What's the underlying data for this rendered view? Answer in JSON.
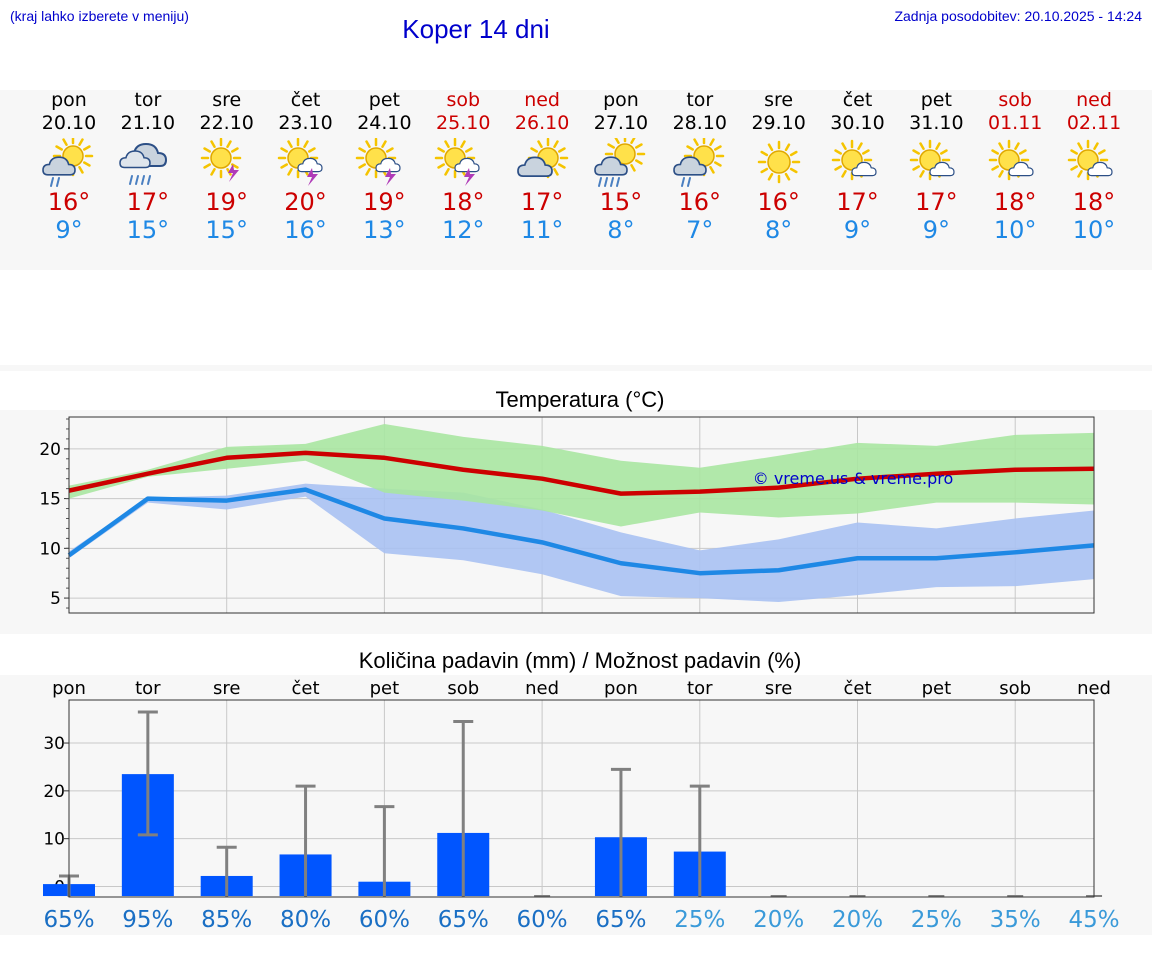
{
  "header": {
    "note": "(kraj lahko izberete v meniju)",
    "title": "Koper 14 dni",
    "updated": "Zadnja posodobitev: 20.10.2025 - 14:24"
  },
  "colors": {
    "max": "#cc0000",
    "min": "#1e88e5",
    "bar": "#0055ff",
    "band_max": "#a8e6a1",
    "band_min": "#a9c1f2",
    "watermark": "#0000cc"
  },
  "days": [
    {
      "name": "pon",
      "date": "20.10",
      "weekend": false,
      "max": "16°",
      "min": "9°",
      "icon": "sun-cloud-rain-icon"
    },
    {
      "name": "tor",
      "date": "21.10",
      "weekend": false,
      "max": "17°",
      "min": "15°",
      "icon": "cloud-heavy-rain-icon"
    },
    {
      "name": "sre",
      "date": "22.10",
      "weekend": false,
      "max": "19°",
      "min": "15°",
      "icon": "sun-thunder-icon"
    },
    {
      "name": "čet",
      "date": "23.10",
      "weekend": false,
      "max": "20°",
      "min": "16°",
      "icon": "sun-cloud-thunder-icon"
    },
    {
      "name": "pet",
      "date": "24.10",
      "weekend": false,
      "max": "19°",
      "min": "13°",
      "icon": "sun-cloud-thunder-icon"
    },
    {
      "name": "sob",
      "date": "25.10",
      "weekend": true,
      "max": "18°",
      "min": "12°",
      "icon": "sun-cloud-thunder-icon"
    },
    {
      "name": "ned",
      "date": "26.10",
      "weekend": true,
      "max": "17°",
      "min": "11°",
      "icon": "sun-cloud-icon"
    },
    {
      "name": "pon",
      "date": "27.10",
      "weekend": false,
      "max": "15°",
      "min": "8°",
      "icon": "sun-cloud-heavy-rain-icon"
    },
    {
      "name": "tor",
      "date": "28.10",
      "weekend": false,
      "max": "16°",
      "min": "7°",
      "icon": "sun-cloud-rain-icon"
    },
    {
      "name": "sre",
      "date": "29.10",
      "weekend": false,
      "max": "16°",
      "min": "8°",
      "icon": "sun-icon"
    },
    {
      "name": "čet",
      "date": "30.10",
      "weekend": false,
      "max": "17°",
      "min": "9°",
      "icon": "sun-small-cloud-icon"
    },
    {
      "name": "pet",
      "date": "31.10",
      "weekend": false,
      "max": "17°",
      "min": "9°",
      "icon": "sun-small-cloud-icon"
    },
    {
      "name": "sob",
      "date": "01.11",
      "weekend": true,
      "max": "18°",
      "min": "10°",
      "icon": "sun-small-cloud-icon"
    },
    {
      "name": "ned",
      "date": "02.11",
      "weekend": true,
      "max": "18°",
      "min": "10°",
      "icon": "sun-small-cloud-icon"
    }
  ],
  "chart_data": [
    {
      "type": "line",
      "title": "Temperatura (°C)",
      "watermark": "© vreme.us & vreme.pro",
      "ylim": [
        3.5,
        23.2
      ],
      "yticks": [
        5,
        10,
        15,
        20
      ],
      "grid": true,
      "x": [
        0,
        1,
        2,
        3,
        4,
        5,
        6,
        7,
        8,
        9,
        10,
        11,
        12,
        13
      ],
      "series": [
        {
          "values": [
            15.8,
            17.5,
            19.1,
            19.6,
            19.1,
            17.9,
            17.0,
            15.5,
            15.7,
            16.1,
            17.0,
            17.5,
            17.9,
            18.0
          ],
          "band_low": [
            15.0,
            17.2,
            18.0,
            18.8,
            15.6,
            14.8,
            13.8,
            12.2,
            13.6,
            13.1,
            13.5,
            14.6,
            14.6,
            14.4
          ],
          "band_high": [
            16.3,
            17.9,
            20.2,
            20.5,
            22.5,
            21.2,
            20.3,
            18.8,
            18.1,
            19.3,
            20.6,
            20.3,
            21.4,
            21.6
          ]
        },
        {
          "values": [
            9.3,
            15.0,
            14.8,
            15.9,
            13.0,
            12.0,
            10.6,
            8.5,
            7.5,
            7.8,
            9.0,
            9.0,
            9.6,
            10.3
          ],
          "band_low": [
            9.0,
            14.6,
            13.9,
            15.2,
            9.5,
            8.8,
            7.4,
            5.2,
            5.0,
            4.6,
            5.3,
            6.1,
            6.2,
            6.9
          ],
          "band_high": [
            9.7,
            15.1,
            15.3,
            16.5,
            16.0,
            15.6,
            13.9,
            11.6,
            9.8,
            10.9,
            12.6,
            12.0,
            13.0,
            13.8
          ]
        }
      ]
    },
    {
      "type": "bar",
      "title": "Količina padavin (mm) / Možnost padavin (%)",
      "categories": [
        "pon",
        "tor",
        "sre",
        "čet",
        "pet",
        "sob",
        "ned",
        "pon",
        "tor",
        "sre",
        "čet",
        "pet",
        "sob",
        "ned"
      ],
      "values": [
        0.5,
        23.5,
        2.2,
        6.7,
        1.0,
        11.2,
        0,
        10.3,
        7.3,
        0,
        0,
        0,
        0,
        0
      ],
      "error_low": [
        0,
        10.8,
        0,
        0,
        0,
        0,
        0,
        0,
        0,
        0,
        0,
        0,
        0,
        0
      ],
      "error_high": [
        2.2,
        36.5,
        8.2,
        21.0,
        16.7,
        34.5,
        0,
        24.5,
        21.0,
        0,
        0,
        0,
        0,
        0
      ],
      "probability": [
        "65%",
        "95%",
        "85%",
        "80%",
        "60%",
        "65%",
        "60%",
        "65%",
        "25%",
        "20%",
        "20%",
        "25%",
        "35%",
        "45%"
      ],
      "ylim": [
        -2.2,
        39.0
      ],
      "yticks": [
        0,
        10,
        20,
        30
      ],
      "grid": true
    }
  ]
}
